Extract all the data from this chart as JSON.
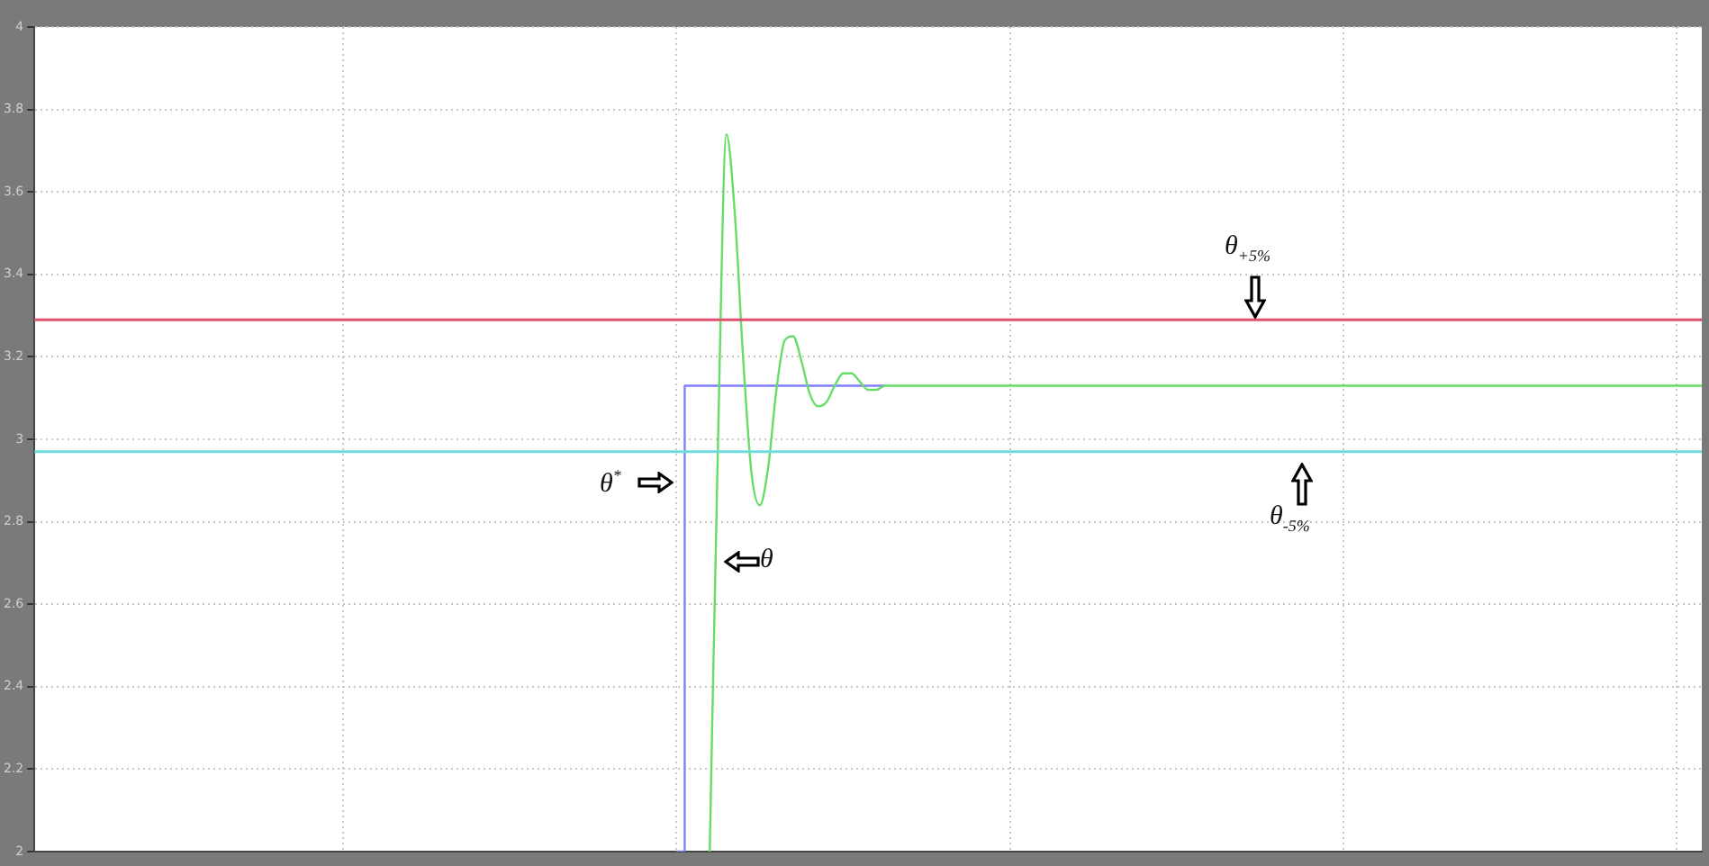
{
  "chart_data": {
    "type": "line",
    "categories": [
      null,
      null,
      null,
      null,
      null,
      null,
      null,
      null,
      null,
      null,
      null,
      null,
      null,
      null,
      null,
      null,
      null,
      null,
      null,
      null,
      null,
      null,
      null,
      null,
      null,
      null,
      null,
      null,
      null,
      null,
      null,
      null,
      null,
      null,
      null,
      null,
      null,
      null,
      null,
      null,
      null,
      null,
      null,
      null,
      null,
      null,
      null,
      null,
      null,
      null,
      null,
      null,
      null,
      null,
      null,
      null,
      null,
      null,
      null,
      null,
      null,
      null,
      null,
      null,
      null,
      null,
      null,
      null,
      null,
      null,
      null,
      null,
      null,
      null,
      null,
      null,
      null,
      null,
      null,
      null,
      null,
      null,
      null,
      null,
      null,
      null,
      null,
      null,
      null,
      null,
      null,
      null,
      null,
      null,
      null,
      null,
      null,
      null,
      null,
      null,
      null,
      null,
      null,
      null,
      null,
      null,
      null,
      null,
      null,
      null,
      null,
      null,
      null,
      null,
      null,
      null,
      null,
      null,
      null,
      null,
      null,
      null,
      null,
      null,
      null,
      null,
      null,
      null,
      null,
      null,
      null,
      null,
      null,
      null,
      null,
      null,
      null,
      null,
      null,
      null,
      null,
      null,
      null,
      null,
      null,
      null,
      null,
      null,
      null,
      null,
      null,
      null,
      null,
      null,
      null,
      null,
      null,
      null,
      null,
      null,
      null,
      null,
      null,
      null,
      null,
      null,
      null,
      null,
      null,
      null,
      null,
      null,
      null,
      null,
      null,
      null,
      null,
      null,
      null,
      null,
      null,
      null,
      null,
      null,
      null,
      null,
      null,
      null,
      null,
      null,
      null,
      null,
      null,
      null,
      null,
      null,
      null,
      null,
      null,
      null,
      null
    ],
    "series": [
      {
        "type": "step",
        "color": "#8080ff",
        "values": [
          null,
          null,
          null,
          null,
          null,
          null,
          null,
          null,
          null,
          null,
          null,
          null,
          null,
          null,
          null,
          null,
          null,
          null,
          null,
          null,
          null,
          null,
          null,
          null,
          null,
          null,
          null,
          null,
          null,
          null,
          null,
          null,
          null,
          null,
          null,
          null,
          null,
          null,
          null,
          null,
          null,
          null,
          null,
          null,
          null,
          null,
          null,
          null,
          null,
          null,
          null,
          null,
          null,
          null,
          null,
          null,
          null,
          null,
          null,
          null,
          null,
          null,
          null,
          null,
          null,
          null,
          null,
          null,
          null,
          null,
          null,
          null,
          null,
          null,
          null,
          null,
          null,
          2,
          3.13,
          3.13,
          3.13,
          3.13,
          3.13,
          3.13,
          3.13,
          3.13,
          3.13,
          3.13,
          3.13,
          3.13,
          3.13,
          3.13,
          3.13,
          3.13,
          3.13,
          3.13,
          3.13,
          3.13,
          3.13,
          3.13,
          3.13,
          3.13,
          3.13,
          null,
          null,
          null,
          null,
          null,
          null,
          null,
          null,
          null,
          null,
          null,
          null,
          null,
          null,
          null,
          null,
          null,
          null,
          null,
          null,
          null,
          null,
          null,
          null,
          null,
          null,
          null,
          null,
          null,
          null,
          null,
          null,
          null,
          null,
          null,
          null,
          null,
          null,
          null,
          null,
          null,
          null,
          null,
          null,
          null,
          null,
          null,
          null,
          null,
          null,
          null,
          null,
          null,
          null,
          null,
          null,
          null,
          null,
          null,
          null,
          null,
          null,
          null,
          null,
          null,
          null,
          null,
          null,
          null,
          null,
          null,
          null,
          null,
          null,
          null,
          null,
          null,
          null,
          null,
          null,
          null,
          null,
          null,
          null,
          null,
          null,
          null,
          null,
          null,
          null,
          null,
          null,
          null,
          null,
          null,
          null,
          null,
          null
        ]
      },
      {
        "color": "#66dd66",
        "values": [
          null,
          null,
          null,
          null,
          null,
          null,
          null,
          null,
          null,
          null,
          null,
          null,
          null,
          null,
          null,
          null,
          null,
          null,
          null,
          null,
          null,
          null,
          null,
          null,
          null,
          null,
          null,
          null,
          null,
          null,
          null,
          null,
          null,
          null,
          null,
          null,
          null,
          null,
          null,
          null,
          null,
          null,
          null,
          null,
          null,
          null,
          null,
          null,
          null,
          null,
          null,
          null,
          null,
          null,
          null,
          null,
          null,
          null,
          null,
          null,
          null,
          null,
          null,
          null,
          null,
          null,
          null,
          null,
          null,
          null,
          null,
          null,
          null,
          null,
          null,
          null,
          null,
          null,
          null,
          null,
          null,
          2,
          3.0,
          3.74,
          3.55,
          3.2,
          2.92,
          2.84,
          2.93,
          3.12,
          3.24,
          3.25,
          3.19,
          3.11,
          3.08,
          3.09,
          3.13,
          3.16,
          3.16,
          3.14,
          3.12,
          3.12,
          3.13,
          3.13,
          3.13,
          3.13,
          3.13,
          3.13,
          3.13,
          3.13,
          3.13,
          3.13,
          3.13,
          3.13,
          3.13,
          3.13,
          3.13,
          3.13,
          3.13,
          3.13,
          3.13,
          3.13,
          3.13,
          3.13,
          3.13,
          3.13,
          3.13,
          3.13,
          3.13,
          3.13,
          3.13,
          3.13,
          3.13,
          3.13,
          3.13,
          3.13,
          3.13,
          3.13,
          3.13,
          3.13,
          3.13,
          3.13,
          3.13,
          3.13,
          3.13,
          3.13,
          3.13,
          3.13,
          3.13,
          3.13,
          3.13,
          3.13,
          3.13,
          3.13,
          3.13,
          3.13,
          3.13,
          3.13,
          3.13,
          3.13,
          3.13,
          3.13,
          3.13,
          3.13,
          3.13,
          3.13,
          3.13,
          3.13,
          3.13,
          3.13,
          3.13,
          3.13,
          3.13,
          3.13,
          3.13,
          3.13,
          3.13,
          3.13,
          3.13,
          3.13,
          3.13,
          3.13,
          3.13,
          3.13,
          3.13,
          3.13,
          3.13,
          3.13,
          3.13,
          3.13,
          3.13,
          3.13,
          3.13,
          3.13,
          3.13,
          3.13,
          3.13,
          3.13,
          3.13,
          3.13,
          3.13
        ]
      }
    ],
    "ylim": [
      2,
      4
    ],
    "yticks": [
      2,
      2.2,
      2.4,
      2.6,
      2.8,
      3,
      3.2,
      3.4,
      3.6,
      3.8,
      4
    ],
    "tick_labels": "y",
    "grid": true,
    "legend": false,
    "marker": "none",
    "ref_lines": [
      {
        "axis": "y",
        "value": 3.29,
        "color": "#e0506e"
      },
      {
        "axis": "y",
        "value": 2.97,
        "color": "#6edcdc"
      }
    ],
    "annotations": [
      "θ$^{*}$",
      "θ",
      {
        "text": "θ$_{+5%}$",
        "y": 3.29
      },
      {
        "text": "θ$_{-5%}$",
        "y": 2.97
      }
    ]
  }
}
